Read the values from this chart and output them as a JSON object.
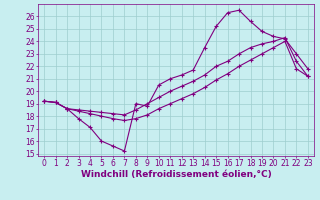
{
  "xlabel": "Windchill (Refroidissement éolien,°C)",
  "background_color": "#c8eef0",
  "line_color": "#800080",
  "xlim": [
    -0.5,
    23.5
  ],
  "ylim": [
    14.8,
    27.0
  ],
  "yticks": [
    15,
    16,
    17,
    18,
    19,
    20,
    21,
    22,
    23,
    24,
    25,
    26
  ],
  "xticks": [
    0,
    1,
    2,
    3,
    4,
    5,
    6,
    7,
    8,
    9,
    10,
    11,
    12,
    13,
    14,
    15,
    16,
    17,
    18,
    19,
    20,
    21,
    22,
    23
  ],
  "line1_x": [
    0,
    1,
    2,
    3,
    4,
    5,
    6,
    7,
    8,
    9,
    10,
    11,
    12,
    13,
    14,
    15,
    16,
    17,
    18,
    19,
    20,
    21,
    22,
    23
  ],
  "line1_y": [
    19.2,
    19.1,
    18.6,
    17.8,
    17.1,
    16.0,
    15.6,
    15.2,
    19.0,
    18.8,
    20.5,
    21.0,
    21.3,
    21.7,
    23.5,
    25.2,
    26.3,
    26.5,
    25.6,
    24.8,
    24.4,
    24.2,
    23.0,
    21.8
  ],
  "line2_x": [
    0,
    1,
    2,
    3,
    4,
    5,
    6,
    7,
    8,
    9,
    10,
    11,
    12,
    13,
    14,
    15,
    16,
    17,
    18,
    19,
    20,
    21,
    22,
    23
  ],
  "line2_y": [
    19.2,
    19.1,
    18.6,
    18.5,
    18.4,
    18.3,
    18.2,
    18.1,
    18.5,
    19.0,
    19.5,
    20.0,
    20.4,
    20.8,
    21.3,
    22.0,
    22.4,
    23.0,
    23.5,
    23.8,
    24.0,
    24.3,
    22.4,
    21.2
  ],
  "line3_x": [
    0,
    1,
    2,
    3,
    4,
    5,
    6,
    7,
    8,
    9,
    10,
    11,
    12,
    13,
    14,
    15,
    16,
    17,
    18,
    19,
    20,
    21,
    22,
    23
  ],
  "line3_y": [
    19.2,
    19.1,
    18.6,
    18.4,
    18.2,
    18.0,
    17.8,
    17.65,
    17.8,
    18.1,
    18.6,
    19.0,
    19.4,
    19.8,
    20.3,
    20.9,
    21.4,
    22.0,
    22.5,
    23.0,
    23.5,
    24.0,
    21.8,
    21.2
  ],
  "tick_fontsize": 5.5,
  "label_fontsize": 6.5,
  "grid_color": "#9ecece",
  "grid_lw": 0.5,
  "marker": "+",
  "marker_size": 3,
  "line_width": 0.8
}
